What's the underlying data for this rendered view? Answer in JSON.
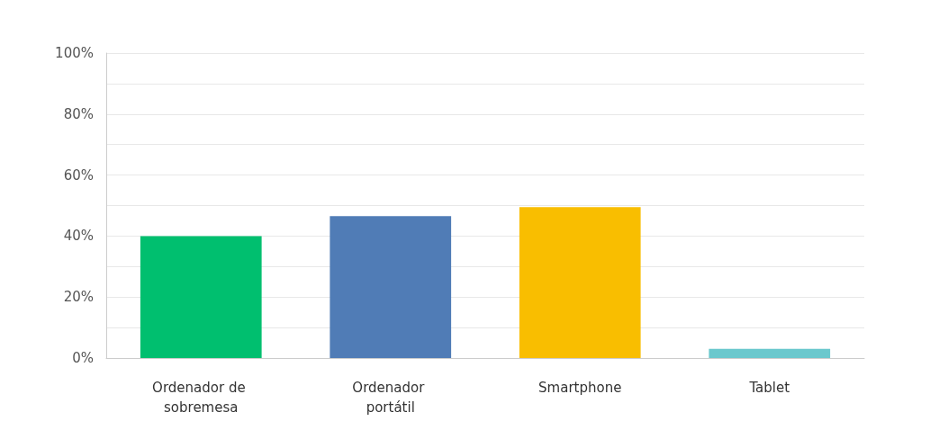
{
  "chart_data": {
    "type": "bar",
    "categories": [
      "Ordenador de sobremesa",
      "Ordenador portátil",
      "Smartphone",
      "Tablet"
    ],
    "values": [
      40,
      46.5,
      49.5,
      3
    ],
    "colors": [
      "#00bf6f",
      "#507cb6",
      "#f9be00",
      "#6bc8cd"
    ],
    "ylim": [
      0,
      100
    ],
    "yticks": [
      {
        "value": 0,
        "label": "0%"
      },
      {
        "value": 10,
        "label": null
      },
      {
        "value": 20,
        "label": "20%"
      },
      {
        "value": 30,
        "label": null
      },
      {
        "value": 40,
        "label": "40%"
      },
      {
        "value": 50,
        "label": null
      },
      {
        "value": 60,
        "label": "60%"
      },
      {
        "value": 70,
        "label": null
      },
      {
        "value": 80,
        "label": "80%"
      },
      {
        "value": 90,
        "label": null
      },
      {
        "value": 100,
        "label": "100%"
      }
    ],
    "grid": "y"
  }
}
